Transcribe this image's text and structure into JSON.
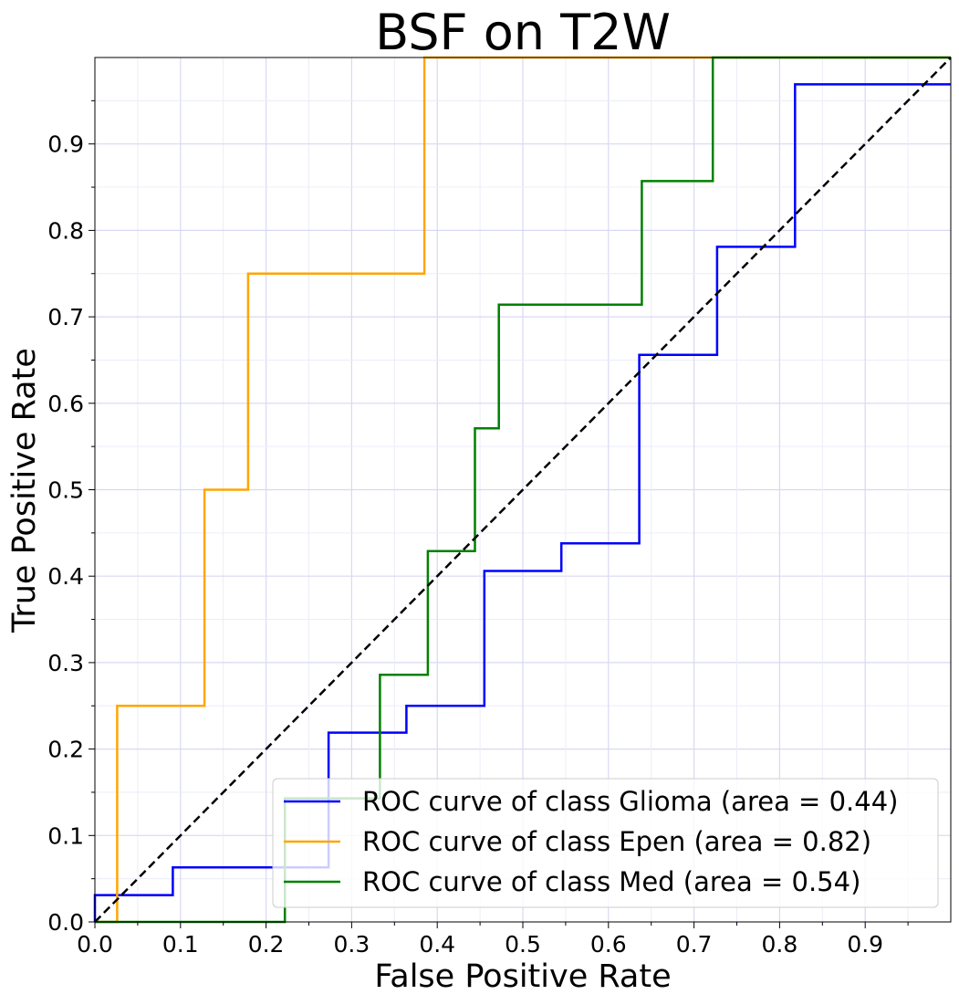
{
  "chart_data": {
    "type": "line",
    "title": "BSF on T2W",
    "xlabel": "False Positive Rate",
    "ylabel": "True Positive Rate",
    "xlim": [
      0.0,
      1.0
    ],
    "ylim": [
      0.0,
      1.0
    ],
    "xticks": [
      "0.0",
      "0.1",
      "0.2",
      "0.3",
      "0.4",
      "0.5",
      "0.6",
      "0.7",
      "0.8",
      "0.9"
    ],
    "yticks": [
      "0.0",
      "0.1",
      "0.2",
      "0.3",
      "0.4",
      "0.5",
      "0.6",
      "0.7",
      "0.8",
      "0.9"
    ],
    "grid": true,
    "legend_position": "bottom-right",
    "series": [
      {
        "name": "ROC curve of class Glioma (area = 0.44)",
        "color": "#0000ff",
        "x": [
          0.0,
          0.0,
          0.091,
          0.091,
          0.273,
          0.273,
          0.364,
          0.364,
          0.455,
          0.455,
          0.545,
          0.545,
          0.636,
          0.636,
          0.727,
          0.727,
          0.818,
          0.818,
          1.0
        ],
        "y": [
          0.0,
          0.031,
          0.031,
          0.063,
          0.063,
          0.219,
          0.219,
          0.25,
          0.25,
          0.406,
          0.406,
          0.438,
          0.438,
          0.656,
          0.656,
          0.781,
          0.781,
          0.969,
          0.969
        ]
      },
      {
        "name": "ROC curve of class Epen (area = 0.82)",
        "color": "#ffa500",
        "x": [
          0.0,
          0.026,
          0.026,
          0.128,
          0.128,
          0.179,
          0.179,
          0.385,
          0.385,
          1.0
        ],
        "y": [
          0.0,
          0.0,
          0.25,
          0.25,
          0.5,
          0.5,
          0.75,
          0.75,
          1.0,
          1.0
        ]
      },
      {
        "name": "ROC curve of class Med (area = 0.54)",
        "color": "#008000",
        "x": [
          0.0,
          0.222,
          0.222,
          0.333,
          0.333,
          0.389,
          0.389,
          0.444,
          0.444,
          0.472,
          0.472,
          0.639,
          0.639,
          0.722,
          0.722,
          1.0
        ],
        "y": [
          0.0,
          0.0,
          0.143,
          0.143,
          0.286,
          0.286,
          0.429,
          0.429,
          0.571,
          0.571,
          0.714,
          0.714,
          0.857,
          0.857,
          1.0,
          1.0
        ]
      }
    ],
    "reference_line": {
      "x": [
        0.0,
        1.0
      ],
      "y": [
        0.0,
        1.0
      ],
      "color": "#000000",
      "style": "dashed"
    }
  }
}
